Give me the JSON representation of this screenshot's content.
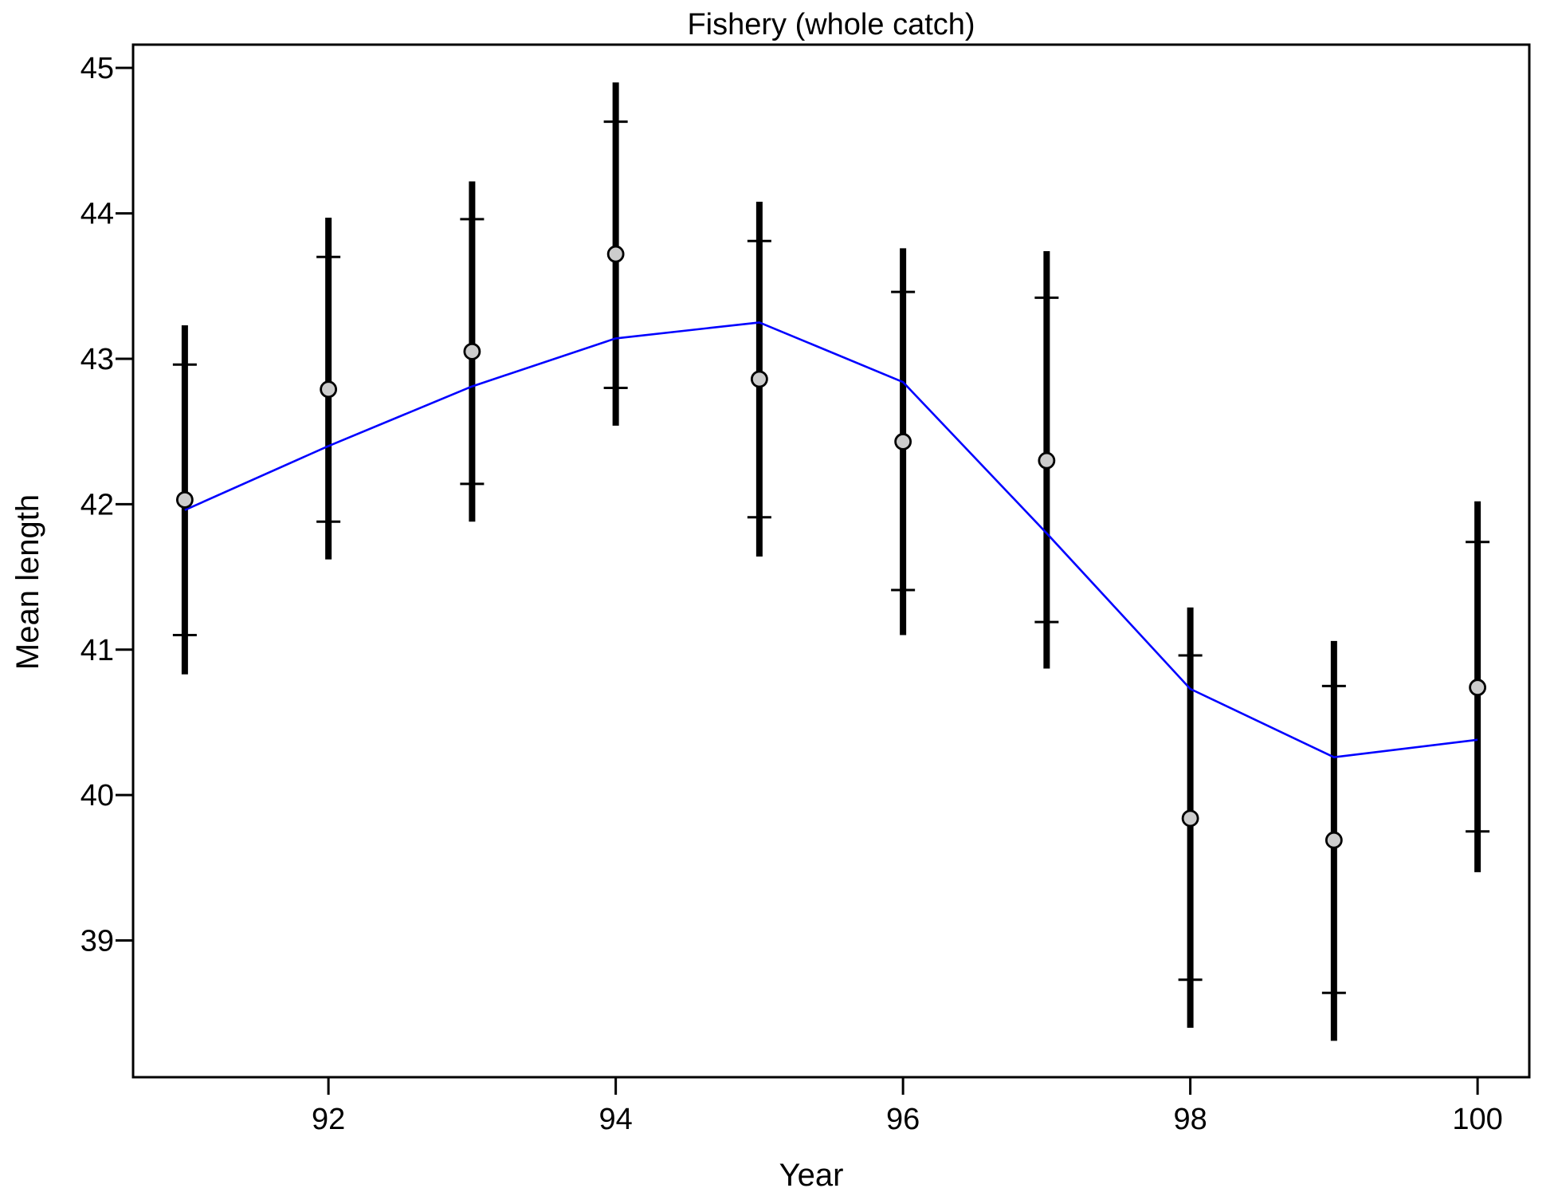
{
  "chart_data": {
    "type": "scatter",
    "title": "Fishery (whole catch)",
    "xlabel": "Year",
    "ylabel": "Mean length",
    "xlim": [
      90.64,
      100.36
    ],
    "ylim": [
      38.06,
      45.16
    ],
    "x_ticks": [
      92,
      94,
      96,
      98,
      100
    ],
    "y_ticks": [
      39,
      40,
      41,
      42,
      43,
      44,
      45
    ],
    "grid": false,
    "legend": "none",
    "colors": {
      "observed_fill": "#cccccc",
      "observed_stroke": "#000000",
      "error_bar": "#000000",
      "expected_line": "#0000ff",
      "frame": "#000000"
    },
    "series": [
      {
        "kind": "observed-with-intervals",
        "x": [
          91,
          92,
          93,
          94,
          95,
          96,
          97,
          98,
          99,
          100
        ],
        "y": [
          42.03,
          42.79,
          43.05,
          43.72,
          42.86,
          42.43,
          42.3,
          39.84,
          39.69,
          40.74
        ],
        "inner_low": [
          41.1,
          41.88,
          42.14,
          42.8,
          41.91,
          41.41,
          41.19,
          38.73,
          38.64,
          39.75
        ],
        "inner_high": [
          42.96,
          43.7,
          43.96,
          44.63,
          43.81,
          43.46,
          43.42,
          40.96,
          40.75,
          41.74
        ],
        "outer_low": [
          40.83,
          41.62,
          41.88,
          42.54,
          41.64,
          41.1,
          40.87,
          38.4,
          38.31,
          39.47
        ],
        "outer_high": [
          43.23,
          43.97,
          44.22,
          44.9,
          44.08,
          43.76,
          43.74,
          41.29,
          41.06,
          42.02
        ]
      },
      {
        "kind": "expected-line",
        "x": [
          91,
          92,
          93,
          94,
          95,
          96,
          97,
          98,
          99,
          100
        ],
        "y": [
          41.96,
          42.4,
          42.81,
          43.14,
          43.25,
          42.84,
          41.8,
          40.73,
          40.26,
          40.38
        ]
      }
    ]
  }
}
